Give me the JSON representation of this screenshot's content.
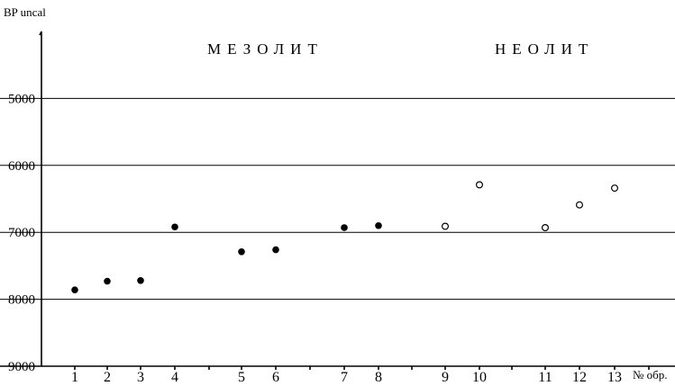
{
  "chart_data": {
    "type": "scatter",
    "title": "",
    "ylabel": "BP uncal",
    "xlabel": "№ обр.",
    "y_inverted": true,
    "ylim": [
      4000,
      9000
    ],
    "y_ticks": [
      5000,
      6000,
      7000,
      8000,
      9000
    ],
    "x_ticks": [
      "1",
      "2",
      "3",
      "4",
      "5",
      "6",
      "7",
      "8",
      "9",
      "10",
      "11",
      "12",
      "13"
    ],
    "grid": "horizontal",
    "period_labels": [
      "МЕЗОЛИТ",
      "НЕОЛИТ"
    ],
    "series": [
      {
        "marker": "filled-circle",
        "points": [
          {
            "x": 1,
            "y": 7860
          },
          {
            "x": 2,
            "y": 7730
          },
          {
            "x": 3,
            "y": 7720
          },
          {
            "x": 4,
            "y": 6920
          },
          {
            "x": 5,
            "y": 7290
          },
          {
            "x": 6,
            "y": 7260
          },
          {
            "x": 7,
            "y": 6930
          },
          {
            "x": 8,
            "y": 6900
          }
        ]
      },
      {
        "marker": "open-circle",
        "points": [
          {
            "x": 9,
            "y": 6910
          },
          {
            "x": 10,
            "y": 6290
          },
          {
            "x": 11,
            "y": 6930
          },
          {
            "x": 12,
            "y": 6590
          },
          {
            "x": 13,
            "y": 6340
          }
        ]
      }
    ]
  }
}
